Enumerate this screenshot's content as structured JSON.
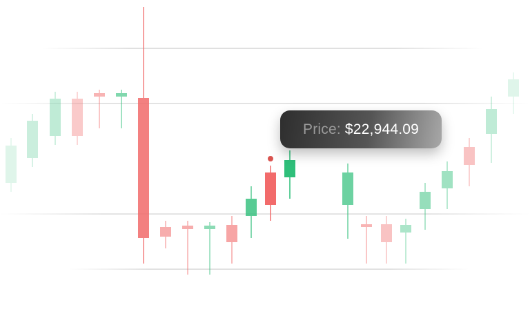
{
  "chart_data": {
    "type": "candlestick",
    "title": "",
    "grid": true,
    "crosshair": true,
    "tooltip": {
      "label": "Price:",
      "value": "$22,944.09"
    },
    "colors": {
      "up": "#2fbf7a",
      "down": "#f26b6b",
      "grid": "#d9d9d9",
      "crosshair": "#777777",
      "marker": "#d9534f"
    }
  }
}
